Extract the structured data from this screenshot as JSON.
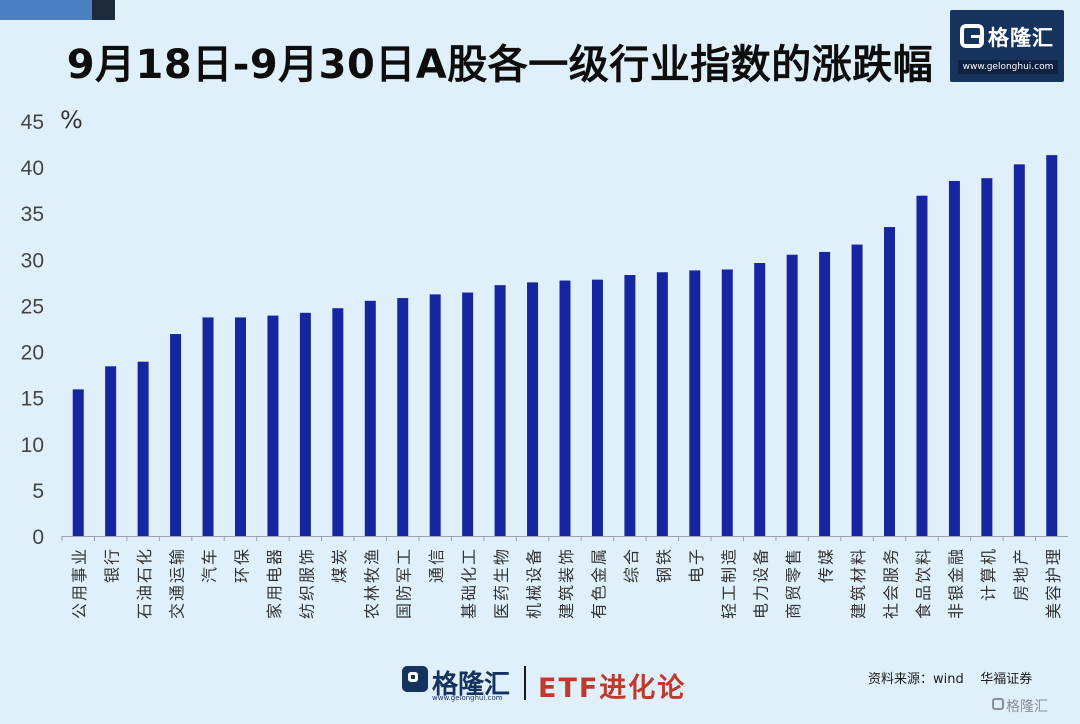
{
  "title": "9月18日-9月30日A股各一级行业指数的涨跌幅",
  "logo": {
    "text": "格隆汇",
    "url": "www.gelonghui.com"
  },
  "footer": {
    "brand": "格隆汇",
    "brand_url": "www.gelonghui.com",
    "etf_text": "ETF进化论",
    "source": "资料来源：wind    华福证券",
    "watermark": "格隆汇"
  },
  "colors": {
    "bar": "#1626a0",
    "background": "#dff0fb",
    "logo_bg": "#16335e",
    "etf": "#c0392b"
  },
  "chart_data": {
    "type": "bar",
    "title": "9月18日-9月30日A股各一级行业指数的涨跌幅",
    "ylabel": "%",
    "ylim": [
      0,
      45
    ],
    "yticks": [
      0,
      5,
      10,
      15,
      20,
      25,
      30,
      35,
      40,
      45
    ],
    "grid": false,
    "categories": [
      "公用事业",
      "银行",
      "石油石化",
      "交通运输",
      "汽车",
      "环保",
      "家用电器",
      "纺织服饰",
      "煤炭",
      "农林牧渔",
      "国防军工",
      "通信",
      "基础化工",
      "医药生物",
      "机械设备",
      "建筑装饰",
      "有色金属",
      "综合",
      "钢铁",
      "电子",
      "轻工制造",
      "电力设备",
      "商贸零售",
      "传媒",
      "建筑材料",
      "社会服务",
      "食品饮料",
      "非银金融",
      "计算机",
      "房地产",
      "美容护理"
    ],
    "values": [
      15.9,
      18.4,
      18.9,
      21.9,
      23.7,
      23.7,
      23.9,
      24.2,
      24.7,
      25.5,
      25.8,
      26.2,
      26.4,
      27.2,
      27.5,
      27.7,
      27.8,
      28.3,
      28.6,
      28.8,
      28.9,
      29.6,
      30.5,
      30.8,
      31.6,
      33.5,
      36.9,
      38.5,
      38.8,
      40.3,
      41.3
    ]
  }
}
